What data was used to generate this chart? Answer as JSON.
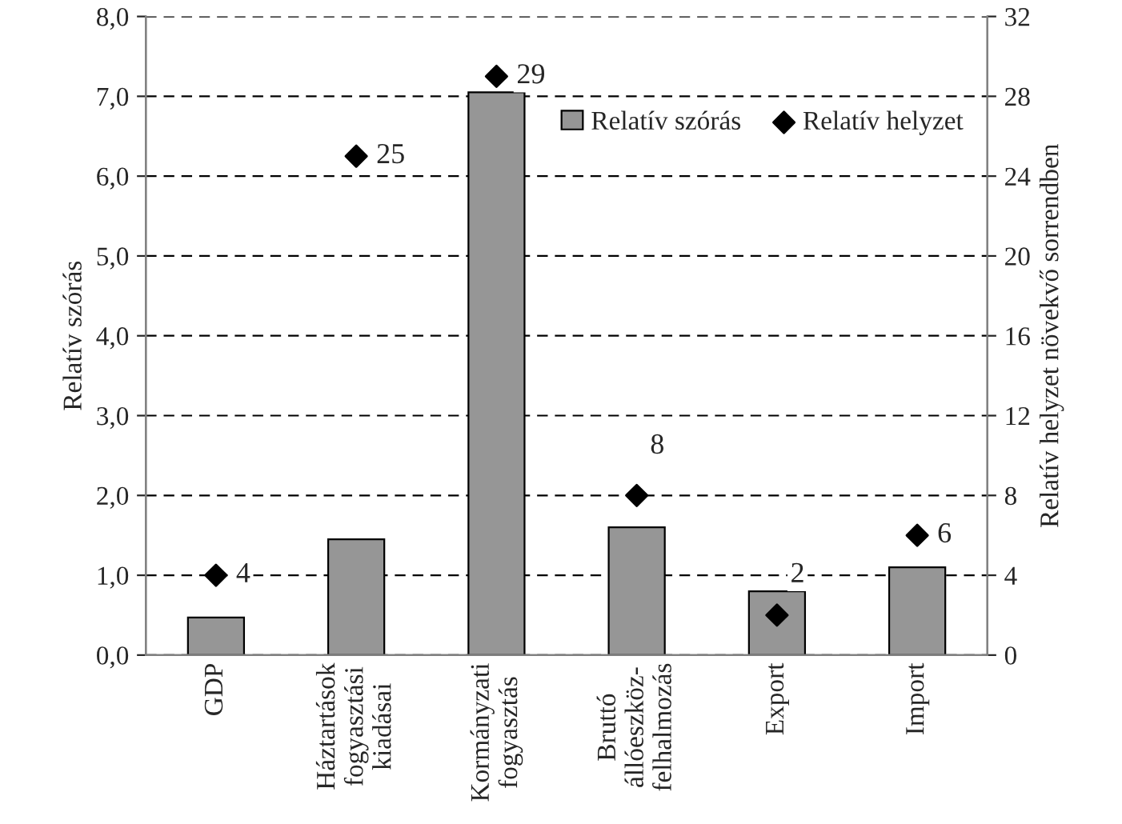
{
  "chart_data": {
    "type": "bar",
    "categories": [
      "GDP",
      "Háztartások\nfogyasztási\nkiadásai",
      "Kormányzati\nfogyasztás",
      "Bruttó\nállóeszköz-\nfelhalmozás",
      "Export",
      "Import"
    ],
    "ylabel": "Relatív szórás",
    "y2label": "Relatív helyzet növekvő sorrendben",
    "series": [
      {
        "name": "Relatív szórás",
        "color": "#969696",
        "values": [
          0.47,
          1.45,
          7.05,
          1.6,
          0.8,
          1.1
        ]
      },
      {
        "name": "Relatív helyzet",
        "type": "scatter",
        "axis": "y2",
        "color": "#000000",
        "marker": "diamond",
        "values": [
          4,
          25,
          29,
          8,
          2,
          6
        ],
        "value_labels": [
          "4",
          "25",
          "29",
          "8",
          "2",
          "6"
        ]
      }
    ],
    "ylim": [
      0,
      8
    ],
    "yticks": [
      {
        "value": 0,
        "label": "0,0"
      },
      {
        "value": 1,
        "label": "1,0"
      },
      {
        "value": 2,
        "label": "2,0"
      },
      {
        "value": 3,
        "label": "3,0"
      },
      {
        "value": 4,
        "label": "4,0"
      },
      {
        "value": 5,
        "label": "5,0"
      },
      {
        "value": 6,
        "label": "6,0"
      },
      {
        "value": 7,
        "label": "7,0"
      },
      {
        "value": 8,
        "label": "8,0"
      }
    ],
    "y2lim": [
      0,
      32
    ],
    "y2ticks": [
      0,
      4,
      8,
      12,
      16,
      20,
      24,
      28,
      32
    ],
    "grid": "y",
    "legend": "top right"
  }
}
